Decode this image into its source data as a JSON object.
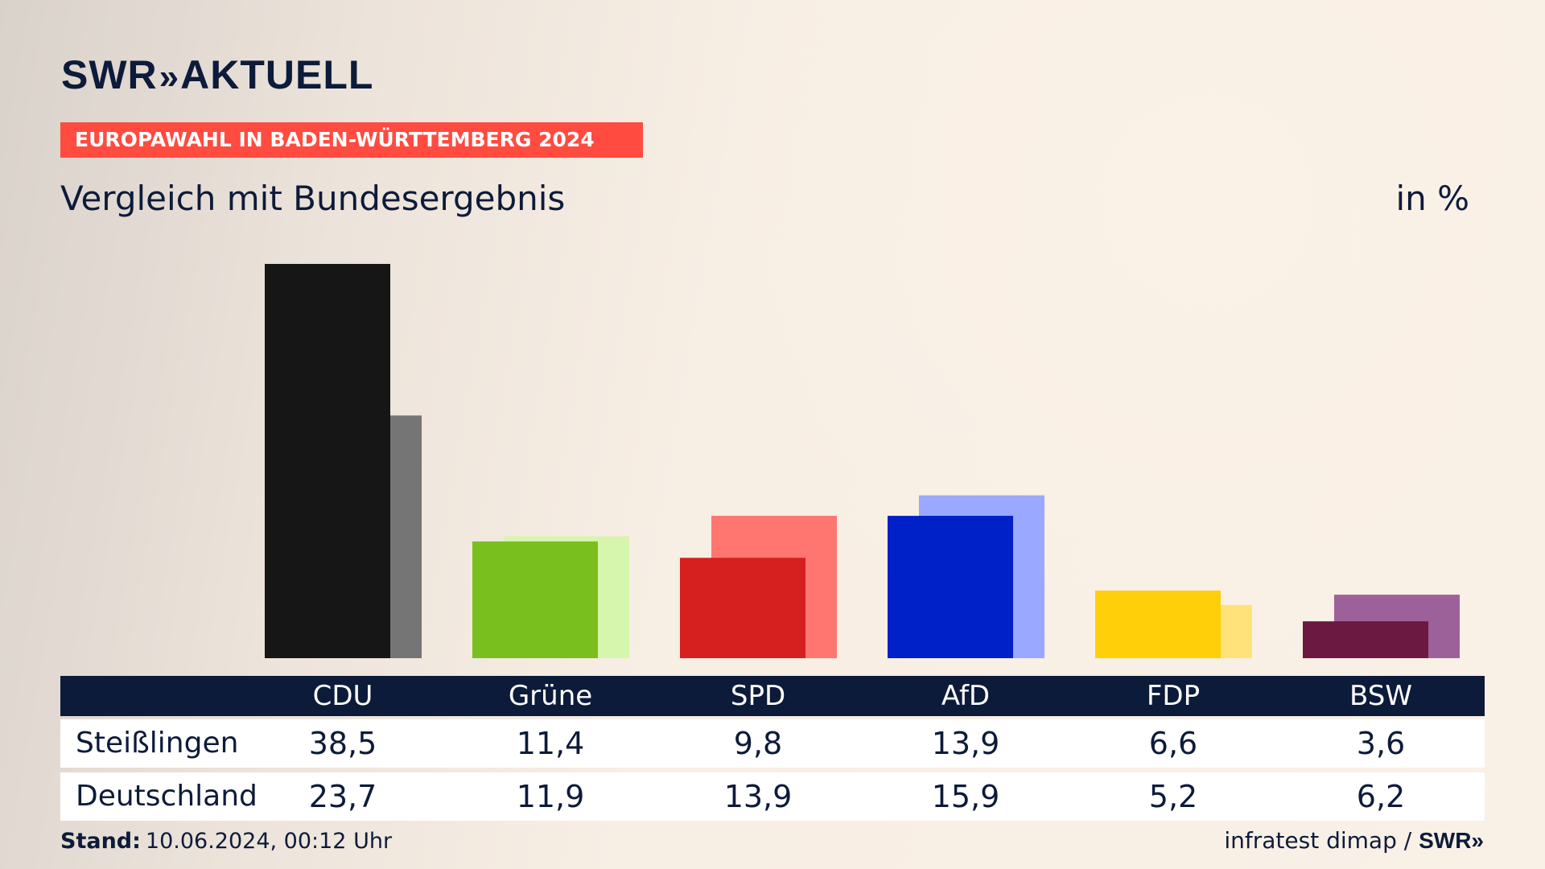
{
  "header": {
    "logo_text": "SWR",
    "logo_chevrons": "»",
    "logo_text2": "AKTUELL",
    "banner": "EUROPAWAHL IN BADEN-WÜRTTEMBERG 2024",
    "subtitle": "Vergleich mit Bundesergebnis",
    "unit": "in %"
  },
  "chart_data": {
    "type": "bar",
    "categories": [
      "CDU",
      "Grüne",
      "SPD",
      "AfD",
      "FDP",
      "BSW"
    ],
    "series": [
      {
        "name": "Steißlingen",
        "values": [
          38.5,
          11.4,
          9.8,
          13.9,
          6.6,
          3.6
        ],
        "colors": [
          "#161616",
          "#79bf1e",
          "#d61f1f",
          "#0020c8",
          "#ffcf0a",
          "#6b1940"
        ]
      },
      {
        "name": "Deutschland",
        "values": [
          23.7,
          11.9,
          13.9,
          15.9,
          5.2,
          6.2
        ],
        "colors": [
          "#757575",
          "#d6f5ad",
          "#ff7570",
          "#9aa8ff",
          "#ffe27a",
          "#9d6199"
        ]
      }
    ],
    "ylim": [
      0,
      38.5
    ],
    "grid": false
  },
  "table": {
    "headers": [
      "CDU",
      "Grüne",
      "SPD",
      "AfD",
      "FDP",
      "BSW"
    ],
    "rows": [
      {
        "label": "Steißlingen",
        "values": [
          "38,5",
          "11,4",
          "9,8",
          "13,9",
          "6,6",
          "3,6"
        ]
      },
      {
        "label": "Deutschland",
        "values": [
          "23,7",
          "11,9",
          "13,9",
          "15,9",
          "5,2",
          "6,2"
        ]
      }
    ]
  },
  "footer": {
    "stand_label": "Stand:",
    "stand_value": "10.06.2024, 00:12 Uhr",
    "source": "infratest dimap /",
    "source_logo": "SWR»"
  }
}
